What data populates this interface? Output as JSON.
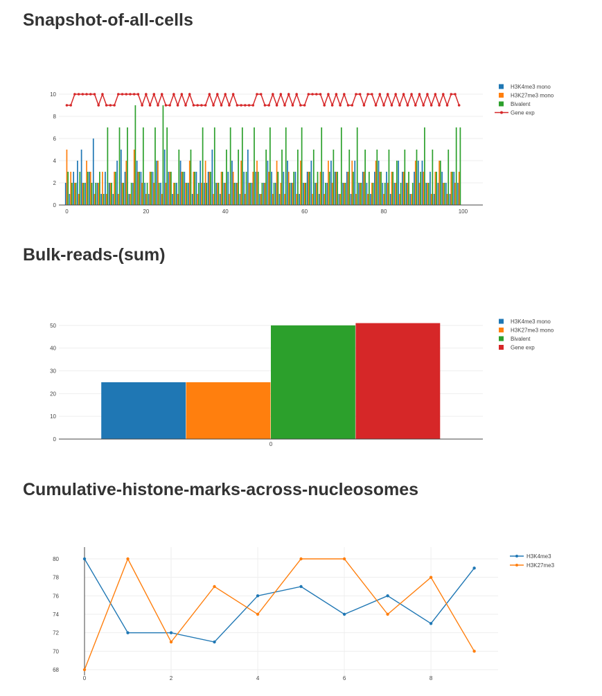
{
  "sections": [
    {
      "title": "Snapshot-of-all-cells"
    },
    {
      "title": "Bulk-reads-(sum)"
    },
    {
      "title": "Cumulative-histone-marks-across-nucleosomes"
    }
  ],
  "chart_data": [
    {
      "type": "bar",
      "subtype": "grouped bar with line overlay",
      "xlim": [
        -2,
        105
      ],
      "ylim": [
        0,
        11
      ],
      "x_ticks": [
        0,
        20,
        40,
        60,
        80,
        100
      ],
      "y_ticks": [
        0,
        2,
        4,
        6,
        8,
        10
      ],
      "grid": "horizontal",
      "legend_position": "top-right",
      "series": [
        {
          "name": "H3K4me3 mono",
          "type": "bar",
          "color": "#1f77b4",
          "values": [
            2,
            1,
            3,
            4,
            5,
            2,
            3,
            6,
            2,
            1,
            3,
            2,
            1,
            4,
            5,
            3,
            1,
            2,
            4,
            3,
            2,
            1,
            3,
            4,
            2,
            5,
            3,
            1,
            2,
            4,
            3,
            2,
            1,
            3,
            4,
            2,
            3,
            5,
            2,
            1,
            2,
            3,
            4,
            2,
            1,
            3,
            5,
            2,
            3,
            1,
            2,
            4,
            3,
            2,
            1,
            3,
            4,
            2,
            3,
            1,
            2,
            3,
            4,
            2,
            1,
            3,
            2,
            4,
            3,
            1,
            2,
            3,
            1,
            4,
            2,
            3,
            2,
            1,
            3,
            4,
            2,
            3,
            1,
            2,
            4,
            3,
            2,
            1,
            3,
            4,
            4,
            2,
            3,
            1,
            2,
            3,
            2,
            1,
            3,
            2
          ]
        },
        {
          "name": "H3K27me3 mono",
          "type": "bar",
          "color": "#ff7f0e",
          "values": [
            5,
            3,
            2,
            1,
            2,
            4,
            3,
            1,
            2,
            3,
            1,
            2,
            3,
            1,
            2,
            4,
            1,
            5,
            3,
            2,
            1,
            3,
            2,
            4,
            1,
            2,
            3,
            2,
            1,
            3,
            2,
            4,
            3,
            1,
            2,
            4,
            3,
            1,
            2,
            3,
            2,
            1,
            3,
            2,
            4,
            1,
            2,
            3,
            4,
            1,
            2,
            3,
            1,
            4,
            2,
            1,
            3,
            2,
            1,
            4,
            2,
            3,
            1,
            2,
            3,
            1,
            4,
            2,
            3,
            1,
            2,
            3,
            4,
            1,
            2,
            3,
            1,
            2,
            4,
            3,
            1,
            2,
            3,
            2,
            1,
            3,
            2,
            1,
            4,
            2,
            3,
            2,
            1,
            3,
            4,
            2,
            1,
            3,
            2,
            3
          ]
        },
        {
          "name": "Bivalent",
          "type": "bar",
          "color": "#2ca02c",
          "values": [
            3,
            2,
            2,
            3,
            2,
            3,
            2,
            2,
            3,
            1,
            7,
            2,
            3,
            7,
            2,
            7,
            2,
            9,
            3,
            7,
            2,
            3,
            7,
            2,
            9,
            7,
            3,
            2,
            5,
            3,
            2,
            5,
            3,
            2,
            7,
            2,
            3,
            7,
            2,
            3,
            5,
            7,
            2,
            5,
            7,
            3,
            2,
            7,
            3,
            2,
            5,
            7,
            2,
            3,
            5,
            7,
            2,
            3,
            5,
            7,
            2,
            3,
            5,
            3,
            7,
            2,
            3,
            5,
            3,
            7,
            2,
            5,
            3,
            7,
            2,
            5,
            3,
            2,
            5,
            3,
            2,
            5,
            3,
            4,
            2,
            5,
            3,
            2,
            5,
            3,
            7,
            2,
            5,
            3,
            4,
            2,
            5,
            3,
            7,
            7
          ]
        },
        {
          "name": "Gene exp",
          "type": "line",
          "color": "#d62728",
          "values": [
            9,
            9,
            10,
            10,
            10,
            10,
            10,
            10,
            9,
            10,
            9,
            9,
            9,
            10,
            10,
            10,
            10,
            10,
            10,
            9,
            10,
            9,
            10,
            9,
            10,
            9,
            9,
            10,
            9,
            10,
            9,
            10,
            9,
            9,
            9,
            9,
            10,
            9,
            10,
            9,
            10,
            9,
            10,
            9,
            9,
            9,
            9,
            9,
            10,
            10,
            9,
            9,
            10,
            9,
            10,
            9,
            10,
            9,
            10,
            9,
            9,
            10,
            10,
            10,
            10,
            9,
            10,
            9,
            10,
            9,
            10,
            9,
            9,
            10,
            10,
            9,
            10,
            10,
            9,
            10,
            9,
            10,
            9,
            10,
            9,
            10,
            9,
            10,
            9,
            10,
            9,
            10,
            9,
            10,
            9,
            10,
            9,
            10,
            10,
            9
          ]
        }
      ]
    },
    {
      "type": "bar",
      "categories": [
        "0"
      ],
      "ylim": [
        0,
        53
      ],
      "y_ticks": [
        0,
        10,
        20,
        30,
        40,
        50
      ],
      "grid": "horizontal",
      "legend_position": "top-right",
      "series": [
        {
          "name": "H3K4me3 mono",
          "color": "#1f77b4",
          "values": [
            25
          ]
        },
        {
          "name": "H3K27me3 mono",
          "color": "#ff7f0e",
          "values": [
            25
          ]
        },
        {
          "name": "Bivalent",
          "color": "#2ca02c",
          "values": [
            50
          ]
        },
        {
          "name": "Gene exp",
          "color": "#d62728",
          "values": [
            51
          ]
        }
      ]
    },
    {
      "type": "line",
      "x": [
        0,
        1,
        2,
        3,
        4,
        5,
        6,
        7,
        8,
        9
      ],
      "xlim": [
        0,
        9.55
      ],
      "ylim": [
        67.4,
        80.9
      ],
      "x_ticks": [
        0,
        2,
        4,
        6,
        8
      ],
      "y_ticks": [
        68,
        70,
        72,
        74,
        76,
        78,
        80
      ],
      "grid": "both",
      "legend_position": "top-right",
      "series": [
        {
          "name": "H3K4me3",
          "color": "#1f77b4",
          "values": [
            80,
            72,
            72,
            71,
            76,
            77,
            74,
            76,
            73,
            79
          ]
        },
        {
          "name": "H3K27me3",
          "color": "#ff7f0e",
          "values": [
            68,
            80,
            71,
            77,
            74,
            80,
            80,
            74,
            78,
            70
          ]
        }
      ]
    }
  ]
}
